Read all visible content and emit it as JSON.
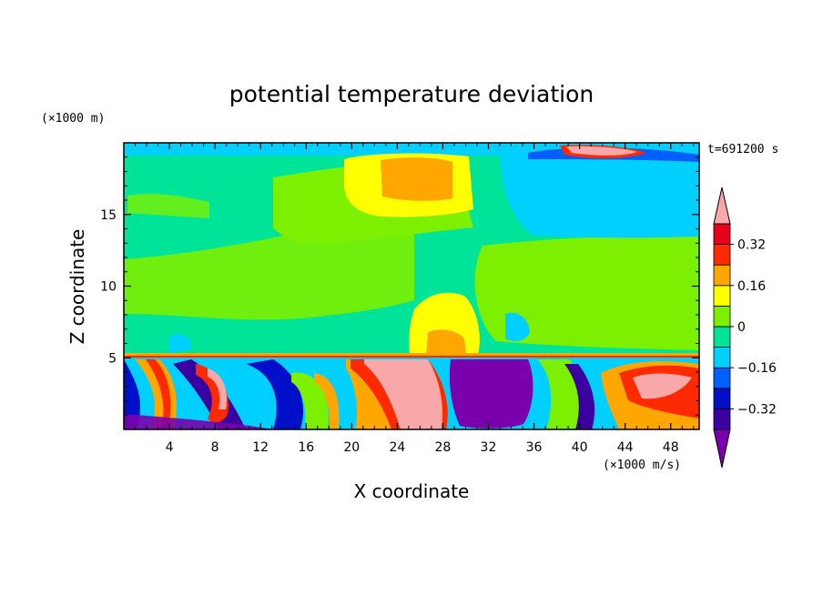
{
  "chart_data": {
    "type": "heatmap",
    "title": "potential temperature deviation",
    "xlabel": "X coordinate",
    "ylabel": "Z coordinate",
    "x_units": "(×1000 m/s)",
    "y_units": "(×1000 m)",
    "time_label": "t=691200 s",
    "xlim": [
      0,
      50.5
    ],
    "ylim": [
      0,
      20
    ],
    "x_ticks": [
      4,
      8,
      12,
      16,
      20,
      24,
      28,
      32,
      36,
      40,
      44,
      48
    ],
    "y_ticks": [
      5,
      10,
      15
    ],
    "colorbar": {
      "levels": [
        -0.4,
        -0.32,
        -0.24,
        -0.16,
        -0.08,
        0,
        0.08,
        0.16,
        0.24,
        0.32,
        0.4
      ],
      "colors": [
        "#7a00ad",
        "#3b00a0",
        "#0010c8",
        "#0060ff",
        "#00d0ff",
        "#00e49a",
        "#7cf000",
        "#ffff00",
        "#ffa600",
        "#ff2a00",
        "#e8001a",
        "#f8a8a8"
      ],
      "tick_labels": [
        "0.32",
        "0.16",
        "0",
        "-0.16",
        "-0.32"
      ],
      "extend": "both"
    }
  }
}
